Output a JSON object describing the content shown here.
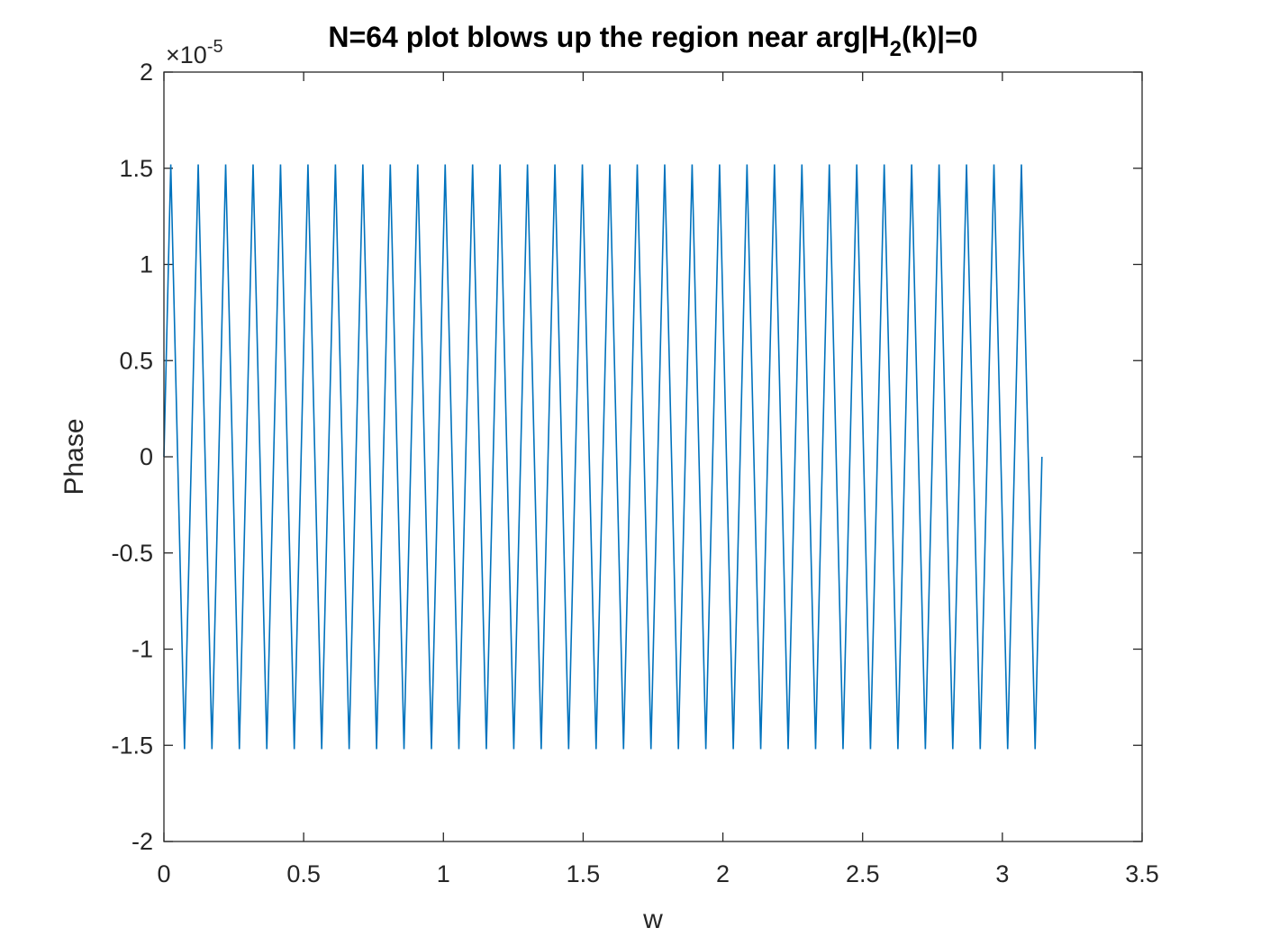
{
  "chart_data": {
    "type": "line",
    "title_main": "N=64 plot blows up the region near arg|H",
    "title_sub": "2",
    "title_tail": "(k)|=0",
    "xlabel": "w",
    "ylabel": "Phase",
    "y_exponent_base": "×10",
    "y_exponent_power": "-5",
    "xlim": [
      0,
      3.5
    ],
    "ylim": [
      -2,
      2
    ],
    "x_ticks": [
      0,
      0.5,
      1,
      1.5,
      2,
      2.5,
      3,
      3.5
    ],
    "x_tick_labels": [
      "0",
      "0.5",
      "1",
      "1.5",
      "2",
      "2.5",
      "3",
      "3.5"
    ],
    "y_ticks": [
      -2,
      -1.5,
      -1,
      -0.5,
      0,
      0.5,
      1,
      1.5,
      2
    ],
    "y_tick_labels": [
      "-2",
      "-1.5",
      "-1",
      "-0.5",
      "0",
      "0.5",
      "1",
      "1.5",
      "2"
    ],
    "grid": false,
    "line_color": "#0072BD",
    "series": [
      {
        "x": [
          0,
          0.0245,
          0.0736,
          0.1227,
          0.1718,
          0.2209,
          0.2699,
          0.319,
          0.3681,
          0.4172,
          0.4663,
          0.5154,
          0.5645,
          0.6136,
          0.6627,
          0.7118,
          0.7609,
          0.8099,
          0.859,
          0.9081,
          0.9572,
          1.0063,
          1.0554,
          1.1045,
          1.1536,
          1.2027,
          1.2518,
          1.3008,
          1.3499,
          1.399,
          1.4481,
          1.4972,
          1.5463,
          1.5954,
          1.6445,
          1.6936,
          1.7427,
          1.7918,
          1.8408,
          1.8899,
          1.939,
          1.9881,
          2.0372,
          2.0863,
          2.1354,
          2.1845,
          2.2336,
          2.2827,
          2.3317,
          2.3808,
          2.4299,
          2.479,
          2.5281,
          2.5772,
          2.6263,
          2.6754,
          2.7245,
          2.7736,
          2.8226,
          2.8717,
          2.9208,
          2.9699,
          3.019,
          3.0681,
          3.1172,
          3.1416
        ],
        "y": [
          0,
          1.52,
          -1.52,
          1.52,
          -1.52,
          1.52,
          -1.52,
          1.52,
          -1.52,
          1.52,
          -1.52,
          1.52,
          -1.52,
          1.52,
          -1.52,
          1.52,
          -1.52,
          1.52,
          -1.52,
          1.52,
          -1.52,
          1.52,
          -1.52,
          1.52,
          -1.52,
          1.52,
          -1.52,
          1.52,
          -1.52,
          1.52,
          -1.52,
          1.52,
          -1.52,
          1.52,
          -1.52,
          1.52,
          -1.52,
          1.52,
          -1.52,
          1.52,
          -1.52,
          1.52,
          -1.52,
          1.52,
          -1.52,
          1.52,
          -1.52,
          1.52,
          -1.52,
          1.52,
          -1.52,
          1.52,
          -1.52,
          1.52,
          -1.52,
          1.52,
          -1.52,
          1.52,
          -1.52,
          1.52,
          -1.52,
          1.52,
          -1.52,
          1.52,
          -1.52,
          0
        ]
      }
    ]
  }
}
